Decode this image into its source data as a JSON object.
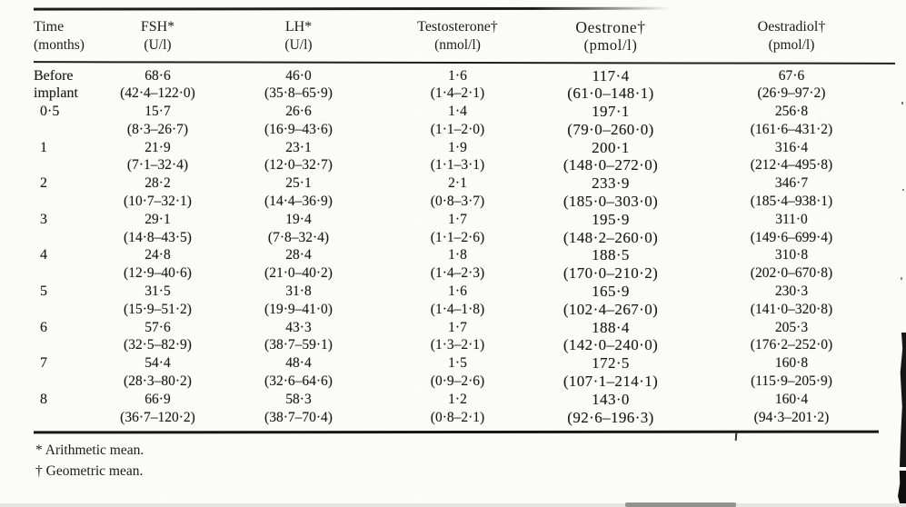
{
  "table": {
    "header": {
      "columns": [
        {
          "key": "time",
          "label": "Time",
          "sub": "(months)"
        },
        {
          "key": "fsh",
          "label": "FSH*",
          "sub": "(U/l)"
        },
        {
          "key": "lh",
          "label": "LH*",
          "sub": "(U/l)"
        },
        {
          "key": "testosterone",
          "label": "Testosterone†",
          "sub": "(nmol/l)"
        },
        {
          "key": "oestrone",
          "label": "Oestrone†",
          "sub": "(pmol/l)"
        },
        {
          "key": "oestradiol",
          "label": "Oestradiol†",
          "sub": "(pmol/l)"
        }
      ]
    },
    "rows": [
      {
        "time": [
          "Before",
          "implant"
        ],
        "values": [
          {
            "mean": "68·6",
            "range": "(42·4–122·0)"
          },
          {
            "mean": "46·0",
            "range": "(35·8–65·9)"
          },
          {
            "mean": "1·6",
            "range": "(1·4–2·1)"
          },
          {
            "mean": "117·4",
            "range": "(61·0–148·1)"
          },
          {
            "mean": "67·6",
            "range": "(26·9–97·2)"
          }
        ]
      },
      {
        "time": [
          "0·5"
        ],
        "values": [
          {
            "mean": "15·7",
            "range": "(8·3–26·7)"
          },
          {
            "mean": "26·6",
            "range": "(16·9–43·6)"
          },
          {
            "mean": "1·4",
            "range": "(1·1–2·0)"
          },
          {
            "mean": "197·1",
            "range": "(79·0–260·0)"
          },
          {
            "mean": "256·8",
            "range": "(161·6–431·2)"
          }
        ]
      },
      {
        "time": [
          "1"
        ],
        "values": [
          {
            "mean": "21·9",
            "range": "(7·1–32·4)"
          },
          {
            "mean": "23·1",
            "range": "(12·0–32·7)"
          },
          {
            "mean": "1·9",
            "range": "(1·1–3·1)"
          },
          {
            "mean": "200·1",
            "range": "(148·0–272·0)"
          },
          {
            "mean": "316·4",
            "range": "(212·4–495·8)"
          }
        ]
      },
      {
        "time": [
          "2"
        ],
        "values": [
          {
            "mean": "28·2",
            "range": "(10·7–32·1)"
          },
          {
            "mean": "25·1",
            "range": "(14·4–36·9)"
          },
          {
            "mean": "2·1",
            "range": "(0·8–3·7)"
          },
          {
            "mean": "233·9",
            "range": "(185·0–303·0)"
          },
          {
            "mean": "346·7",
            "range": "(185·4–938·1)"
          }
        ]
      },
      {
        "time": [
          "3"
        ],
        "values": [
          {
            "mean": "29·1",
            "range": "(14·8–43·5)"
          },
          {
            "mean": "19·4",
            "range": "(7·8–32·4)"
          },
          {
            "mean": "1·7",
            "range": "(1·1–2·6)"
          },
          {
            "mean": "195·9",
            "range": "(148·2–260·0)"
          },
          {
            "mean": "311·0",
            "range": "(149·6–699·4)"
          }
        ]
      },
      {
        "time": [
          "4"
        ],
        "values": [
          {
            "mean": "24·8",
            "range": "(12·9–40·6)"
          },
          {
            "mean": "28·4",
            "range": "(21·0–40·2)"
          },
          {
            "mean": "1·8",
            "range": "(1·4–2·3)"
          },
          {
            "mean": "188·5",
            "range": "(170·0–210·2)"
          },
          {
            "mean": "310·8",
            "range": "(202·0–670·8)"
          }
        ]
      },
      {
        "time": [
          "5"
        ],
        "values": [
          {
            "mean": "31·5",
            "range": "(15·9–51·2)"
          },
          {
            "mean": "31·8",
            "range": "(19·9–41·0)"
          },
          {
            "mean": "1·6",
            "range": "(1·4–1·8)"
          },
          {
            "mean": "165·9",
            "range": "(102·4–267·0)"
          },
          {
            "mean": "230·3",
            "range": "(141·0–320·8)"
          }
        ]
      },
      {
        "time": [
          "6"
        ],
        "values": [
          {
            "mean": "57·6",
            "range": "(32·5–82·9)"
          },
          {
            "mean": "43·3",
            "range": "(38·7–59·1)"
          },
          {
            "mean": "1·7",
            "range": "(1·3–2·1)"
          },
          {
            "mean": "188·4",
            "range": "(142·0–240·0)"
          },
          {
            "mean": "205·3",
            "range": "(176·2–252·0)"
          }
        ]
      },
      {
        "time": [
          "7"
        ],
        "values": [
          {
            "mean": "54·4",
            "range": "(28·3–80·2)"
          },
          {
            "mean": "48·4",
            "range": "(32·6–64·6)"
          },
          {
            "mean": "1·5",
            "range": "(0·9–2·6)"
          },
          {
            "mean": "172·5",
            "range": "(107·1–214·1)"
          },
          {
            "mean": "160·8",
            "range": "(115·9–205·9)"
          }
        ]
      },
      {
        "time": [
          "8"
        ],
        "values": [
          {
            "mean": "66·9",
            "range": "(36·7–120·2)"
          },
          {
            "mean": "58·3",
            "range": "(38·7–70·4)"
          },
          {
            "mean": "1·2",
            "range": "(0·8–2·1)"
          },
          {
            "mean": "143·0",
            "range": "(92·6–196·3)"
          },
          {
            "mean": "160·4",
            "range": "(94·3–201·2)"
          }
        ]
      }
    ]
  },
  "footnotes": [
    "* Arithmetic mean.",
    "† Geometric mean."
  ]
}
